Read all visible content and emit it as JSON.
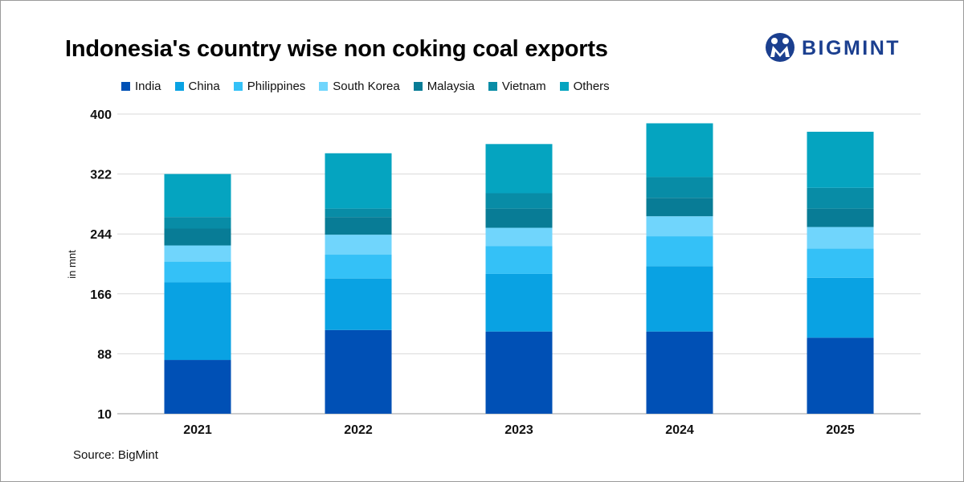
{
  "title": "Indonesia's country wise non coking coal exports",
  "logo_text": "BIGMINT",
  "source": "Source: BigMint",
  "colors": {
    "India": "#0050b5",
    "China": "#09a2e3",
    "Philippines": "#34c1f7",
    "South Korea": "#70d5fc",
    "Malaysia": "#087c96",
    "Vietnam": "#088ca6",
    "Others": "#05a4c0",
    "brand": "#1b3f8f"
  },
  "chart_data": {
    "type": "bar",
    "stacked": true,
    "title": "Indonesia's country wise non coking coal exports",
    "xlabel": "",
    "ylabel": "in mnt",
    "ylim": [
      10,
      400
    ],
    "yticks": [
      10,
      88,
      166,
      244,
      322,
      400
    ],
    "grid": true,
    "legend_position": "top",
    "categories": [
      "2021",
      "2022",
      "2023",
      "2024",
      "2025"
    ],
    "series": [
      {
        "name": "India",
        "values": [
          70,
          109,
          107,
          107,
          99
        ]
      },
      {
        "name": "China",
        "values": [
          101,
          67,
          75,
          85,
          78
        ]
      },
      {
        "name": "Philippines",
        "values": [
          27,
          31,
          36,
          39,
          38
        ]
      },
      {
        "name": "South Korea",
        "values": [
          21,
          26,
          24,
          26,
          28
        ]
      },
      {
        "name": "Malaysia",
        "values": [
          22,
          23,
          25,
          24,
          24
        ]
      },
      {
        "name": "Vietnam",
        "values": [
          15,
          11,
          20,
          27,
          27
        ]
      },
      {
        "name": "Others",
        "values": [
          56,
          72,
          64,
          70,
          73
        ]
      }
    ]
  }
}
